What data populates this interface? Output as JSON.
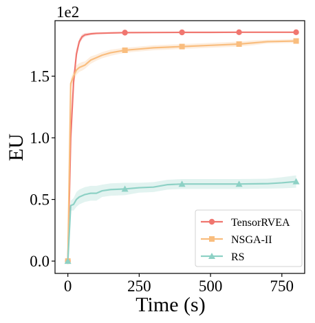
{
  "chart_data": {
    "type": "line",
    "xlabel": "Time (s)",
    "ylabel": "EU",
    "y_multiplier": "1e2",
    "xlim": [
      -45,
      830
    ],
    "ylim": [
      -0.1,
      1.95
    ],
    "x_ticks": [
      0,
      250,
      500,
      750
    ],
    "y_ticks": [
      0.0,
      0.5,
      1.0,
      1.5
    ],
    "y_tick_labels": [
      "0.0",
      "0.5",
      "1.0",
      "1.5"
    ],
    "legend_position": "lower-right",
    "grid": false,
    "series": [
      {
        "name": "TensorRVEA",
        "color": "#f0766f",
        "marker": "circle",
        "x": [
          0,
          10,
          20,
          30,
          40,
          50,
          60,
          80,
          100,
          130,
          160,
          200,
          300,
          400,
          500,
          600,
          700,
          800
        ],
        "y": [
          0.0,
          1.0,
          1.45,
          1.68,
          1.78,
          1.82,
          1.835,
          1.843,
          1.847,
          1.849,
          1.851,
          1.853,
          1.854,
          1.855,
          1.855,
          1.856,
          1.856,
          1.856
        ],
        "band": [
          0.0,
          0.06,
          0.05,
          0.04,
          0.025,
          0.02,
          0.015,
          0.01,
          0.008,
          0.007,
          0.006,
          0.005,
          0.005,
          0.005,
          0.005,
          0.005,
          0.005,
          0.005
        ],
        "marker_x": [
          0,
          200,
          400,
          600,
          800
        ]
      },
      {
        "name": "NSGA-II",
        "color": "#f9bd7e",
        "marker": "square",
        "x": [
          0,
          10,
          20,
          30,
          40,
          50,
          60,
          70,
          80,
          100,
          120,
          150,
          200,
          250,
          300,
          350,
          400,
          500,
          600,
          650,
          700,
          800
        ],
        "y": [
          0.0,
          1.44,
          1.5,
          1.55,
          1.57,
          1.58,
          1.59,
          1.61,
          1.63,
          1.65,
          1.67,
          1.69,
          1.71,
          1.72,
          1.73,
          1.735,
          1.74,
          1.75,
          1.76,
          1.77,
          1.78,
          1.785
        ],
        "band": [
          0.0,
          0.04,
          0.04,
          0.04,
          0.035,
          0.035,
          0.03,
          0.03,
          0.03,
          0.025,
          0.025,
          0.025,
          0.02,
          0.02,
          0.02,
          0.02,
          0.02,
          0.02,
          0.02,
          0.02,
          0.015,
          0.015
        ],
        "marker_x": [
          0,
          200,
          400,
          600,
          800
        ]
      },
      {
        "name": "RS",
        "color": "#8dd1c5",
        "marker": "triangle",
        "x": [
          0,
          10,
          20,
          30,
          40,
          60,
          80,
          100,
          120,
          150,
          200,
          250,
          300,
          350,
          400,
          450,
          500,
          600,
          700,
          750,
          800
        ],
        "y": [
          0.0,
          0.45,
          0.46,
          0.5,
          0.52,
          0.54,
          0.55,
          0.55,
          0.57,
          0.58,
          0.585,
          0.595,
          0.6,
          0.62,
          0.625,
          0.625,
          0.625,
          0.625,
          0.628,
          0.635,
          0.645
        ],
        "band": [
          0.0,
          0.04,
          0.05,
          0.06,
          0.06,
          0.06,
          0.06,
          0.06,
          0.05,
          0.05,
          0.05,
          0.04,
          0.04,
          0.04,
          0.04,
          0.04,
          0.04,
          0.04,
          0.04,
          0.045,
          0.05
        ],
        "marker_x": [
          0,
          200,
          400,
          600,
          800
        ]
      }
    ]
  }
}
